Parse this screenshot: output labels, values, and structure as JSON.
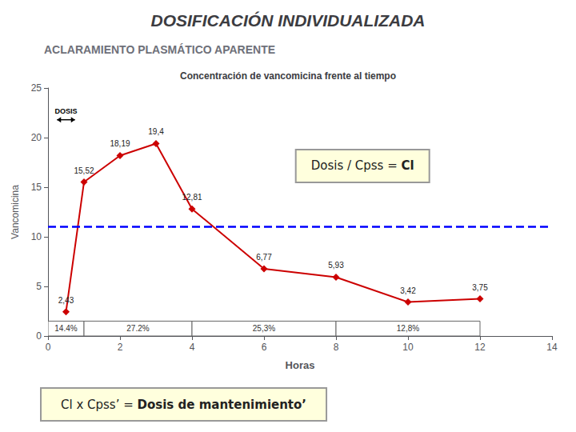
{
  "chart_data": {
    "type": "line",
    "title": "DOSIFICACIÓN INDIVIDUALIZADA",
    "subtitle": "ACLARAMIENTO PLASMÁTICO APARENTE",
    "plot_title": "Concentración de vancomicina frente al tiempo",
    "xlabel": "Horas",
    "ylabel": "Vancomicina",
    "x": [
      0.5,
      1,
      2,
      3,
      4,
      6,
      8,
      10,
      12
    ],
    "values": [
      2.43,
      15.52,
      18.19,
      19.4,
      12.81,
      6.77,
      5.93,
      3.42,
      3.75
    ],
    "value_labels": [
      "2,43",
      "15,52",
      "18,19",
      "19,4",
      "12,81",
      "6,77",
      "5,93",
      "3,42",
      "3,75"
    ],
    "data_labels": true,
    "color": "#cc0000",
    "marker": "diamond",
    "xlim": [
      0,
      14
    ],
    "xticks": [
      0,
      2,
      4,
      6,
      8,
      10,
      12,
      14
    ],
    "ylim": [
      0,
      25
    ],
    "yticks": [
      0,
      5,
      10,
      15,
      20,
      25
    ],
    "grid": false,
    "reference_line": {
      "value": 11,
      "color": "#0000ff",
      "line_style": "dashed"
    },
    "bands": [
      {
        "start": 0,
        "width": 1,
        "label": "14.4%"
      },
      {
        "start": 1,
        "width": 3,
        "label": "27.2%"
      },
      {
        "start": 4,
        "width": 4,
        "label": "25,3%"
      },
      {
        "start": 8,
        "width": 4,
        "label": "12,8%"
      }
    ],
    "band_height": 1.5,
    "annotations": [
      {
        "text": "DOSIS",
        "x": [
          0.25,
          0.75
        ],
        "y": 21.8
      }
    ],
    "boxes": [
      {
        "text": [
          "Dosis / Cpss = ",
          "Cl"
        ],
        "color": "#ffffdd"
      },
      {
        "text": [
          "Cl x Cpss’ = ",
          "Dosis de mantenimiento’"
        ],
        "color": "#ffffdd"
      }
    ]
  }
}
